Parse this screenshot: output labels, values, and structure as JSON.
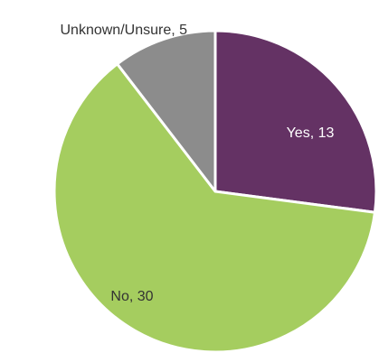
{
  "chart_data": {
    "type": "pie",
    "slices": [
      {
        "label": "Yes",
        "value": 13,
        "data_label": "Yes, 13",
        "color": "#643264",
        "label_color": "#ffffff"
      },
      {
        "label": "No",
        "value": 30,
        "data_label": "No, 30",
        "color": "#a5cd5f",
        "label_color": "#333333"
      },
      {
        "label": "Unknown/Unsure",
        "value": 5,
        "data_label": "Unknown/Unsure, 5",
        "color": "#8c8c8c",
        "label_color": "#333333"
      }
    ],
    "start": "12 o'clock",
    "direction": "clockwise",
    "legend": "none"
  }
}
